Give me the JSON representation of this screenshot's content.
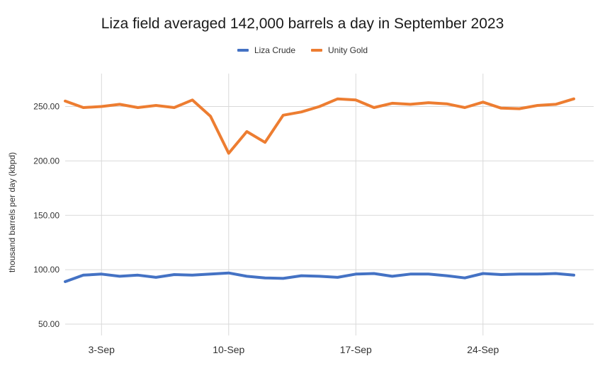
{
  "chart_data": {
    "type": "line",
    "title": "Liza field averaged 142,000 barrels a day in September 2023",
    "xlabel": "",
    "ylabel": "thousand barrels per day (kbpd)",
    "ylim": [
      40,
      282
    ],
    "yticks": [
      "50.00",
      "100.00",
      "150.00",
      "200.00",
      "250.00"
    ],
    "ytick_values": [
      50,
      100,
      150,
      200,
      250
    ],
    "xticks": [
      {
        "day": 3,
        "label": "3-Sep"
      },
      {
        "day": 10,
        "label": "10-Sep"
      },
      {
        "day": 17,
        "label": "17-Sep"
      },
      {
        "day": 24,
        "label": "24-Sep"
      }
    ],
    "x": [
      1,
      2,
      3,
      4,
      5,
      6,
      7,
      8,
      9,
      10,
      11,
      12,
      13,
      14,
      15,
      16,
      17,
      18,
      19,
      20,
      21,
      22,
      23,
      24,
      25,
      26,
      27,
      28,
      29
    ],
    "series": [
      {
        "name": "Liza Crude",
        "color": "#4472C4",
        "values": [
          89,
          95,
          96,
          94,
          95,
          93,
          95.5,
          95,
          96,
          97,
          94,
          92.5,
          92,
          94.5,
          94,
          93,
          96,
          96.5,
          94,
          96,
          96,
          94.5,
          92.5,
          96.5,
          95.5,
          96,
          96,
          96.5,
          95
        ]
      },
      {
        "name": "Unity Gold",
        "color": "#ED7D31",
        "values": [
          255,
          249,
          250,
          252,
          249,
          251,
          249,
          256,
          241,
          207,
          227,
          217,
          242,
          245,
          250,
          257,
          256,
          249,
          253,
          252,
          253.5,
          252.5,
          249,
          254,
          248.5,
          248,
          251,
          252,
          257
        ]
      }
    ]
  }
}
